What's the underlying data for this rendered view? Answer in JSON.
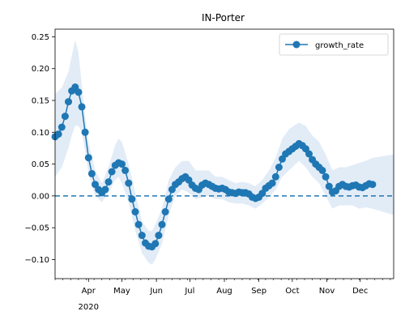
{
  "chart_data": {
    "type": "line",
    "title": "IN-Porter",
    "xlabel": "",
    "ylabel": "",
    "x_ticks": [
      "Apr",
      "May",
      "Jun",
      "Jul",
      "Aug",
      "Sep",
      "Oct",
      "Nov",
      "Dec"
    ],
    "x_year_label": "2020",
    "x_range": [
      "2020-03-02",
      "2020-12-31"
    ],
    "ylim": [
      -0.13,
      0.262
    ],
    "y_ticks": [
      "0.25",
      "0.20",
      "0.15",
      "0.10",
      "0.05",
      "0.00",
      "−0.05",
      "−0.10"
    ],
    "y_tick_values": [
      0.25,
      0.2,
      0.15,
      0.1,
      0.05,
      0.0,
      -0.05,
      -0.1
    ],
    "reference_line": 0.0,
    "legend": {
      "position": "top-right",
      "label": "growth_rate"
    },
    "colors": {
      "series": "#1f77b4",
      "band": "#cfe0f1",
      "zero_line": "#1f77b4"
    },
    "series": [
      {
        "name": "growth_rate",
        "points": [
          [
            "2020-03-02",
            0.093
          ],
          [
            "2020-03-05",
            0.097
          ],
          [
            "2020-03-08",
            0.108
          ],
          [
            "2020-03-11",
            0.125
          ],
          [
            "2020-03-14",
            0.148
          ],
          [
            "2020-03-17",
            0.165
          ],
          [
            "2020-03-20",
            0.171
          ],
          [
            "2020-03-23",
            0.163
          ],
          [
            "2020-03-26",
            0.14
          ],
          [
            "2020-03-29",
            0.1
          ],
          [
            "2020-04-01",
            0.06
          ],
          [
            "2020-04-04",
            0.035
          ],
          [
            "2020-04-07",
            0.018
          ],
          [
            "2020-04-10",
            0.01
          ],
          [
            "2020-04-13",
            0.005
          ],
          [
            "2020-04-16",
            0.01
          ],
          [
            "2020-04-19",
            0.022
          ],
          [
            "2020-04-22",
            0.038
          ],
          [
            "2020-04-25",
            0.048
          ],
          [
            "2020-04-28",
            0.052
          ],
          [
            "2020-05-01",
            0.05
          ],
          [
            "2020-05-04",
            0.04
          ],
          [
            "2020-05-07",
            0.02
          ],
          [
            "2020-05-10",
            -0.005
          ],
          [
            "2020-05-13",
            -0.025
          ],
          [
            "2020-05-16",
            -0.045
          ],
          [
            "2020-05-19",
            -0.062
          ],
          [
            "2020-05-22",
            -0.074
          ],
          [
            "2020-05-25",
            -0.079
          ],
          [
            "2020-05-28",
            -0.08
          ],
          [
            "2020-05-31",
            -0.075
          ],
          [
            "2020-06-03",
            -0.062
          ],
          [
            "2020-06-06",
            -0.045
          ],
          [
            "2020-06-09",
            -0.025
          ],
          [
            "2020-06-12",
            -0.005
          ],
          [
            "2020-06-15",
            0.01
          ],
          [
            "2020-06-18",
            0.018
          ],
          [
            "2020-06-21",
            0.022
          ],
          [
            "2020-06-24",
            0.027
          ],
          [
            "2020-06-27",
            0.03
          ],
          [
            "2020-06-30",
            0.025
          ],
          [
            "2020-07-03",
            0.017
          ],
          [
            "2020-07-06",
            0.012
          ],
          [
            "2020-07-09",
            0.01
          ],
          [
            "2020-07-12",
            0.017
          ],
          [
            "2020-07-15",
            0.02
          ],
          [
            "2020-07-18",
            0.018
          ],
          [
            "2020-07-21",
            0.015
          ],
          [
            "2020-07-24",
            0.012
          ],
          [
            "2020-07-27",
            0.011
          ],
          [
            "2020-07-30",
            0.012
          ],
          [
            "2020-08-02",
            0.01
          ],
          [
            "2020-08-05",
            0.006
          ],
          [
            "2020-08-08",
            0.005
          ],
          [
            "2020-08-11",
            0.004
          ],
          [
            "2020-08-14",
            0.006
          ],
          [
            "2020-08-17",
            0.005
          ],
          [
            "2020-08-20",
            0.005
          ],
          [
            "2020-08-23",
            0.003
          ],
          [
            "2020-08-26",
            -0.002
          ],
          [
            "2020-08-29",
            -0.004
          ],
          [
            "2020-09-01",
            -0.002
          ],
          [
            "2020-09-04",
            0.004
          ],
          [
            "2020-09-07",
            0.012
          ],
          [
            "2020-09-10",
            0.016
          ],
          [
            "2020-09-13",
            0.02
          ],
          [
            "2020-09-16",
            0.03
          ],
          [
            "2020-09-19",
            0.045
          ],
          [
            "2020-09-22",
            0.058
          ],
          [
            "2020-09-25",
            0.066
          ],
          [
            "2020-09-28",
            0.07
          ],
          [
            "2020-10-01",
            0.074
          ],
          [
            "2020-10-04",
            0.078
          ],
          [
            "2020-10-07",
            0.082
          ],
          [
            "2020-10-10",
            0.079
          ],
          [
            "2020-10-13",
            0.074
          ],
          [
            "2020-10-16",
            0.066
          ],
          [
            "2020-10-19",
            0.057
          ],
          [
            "2020-10-22",
            0.05
          ],
          [
            "2020-10-25",
            0.045
          ],
          [
            "2020-10-28",
            0.04
          ],
          [
            "2020-10-31",
            0.03
          ],
          [
            "2020-11-03",
            0.015
          ],
          [
            "2020-11-06",
            0.006
          ],
          [
            "2020-11-09",
            0.008
          ],
          [
            "2020-11-12",
            0.015
          ],
          [
            "2020-11-15",
            0.018
          ],
          [
            "2020-11-18",
            0.015
          ],
          [
            "2020-11-21",
            0.014
          ],
          [
            "2020-11-24",
            0.016
          ],
          [
            "2020-11-27",
            0.017
          ],
          [
            "2020-11-30",
            0.014
          ],
          [
            "2020-12-03",
            0.013
          ],
          [
            "2020-12-06",
            0.016
          ],
          [
            "2020-12-09",
            0.019
          ],
          [
            "2020-12-12",
            0.018
          ]
        ],
        "band_points": [
          [
            "2020-03-02",
            0.03,
            0.16
          ],
          [
            "2020-03-08",
            0.045,
            0.17
          ],
          [
            "2020-03-14",
            0.075,
            0.195
          ],
          [
            "2020-03-17",
            0.095,
            0.22
          ],
          [
            "2020-03-20",
            0.11,
            0.245
          ],
          [
            "2020-03-23",
            0.11,
            0.225
          ],
          [
            "2020-03-26",
            0.1,
            0.175
          ],
          [
            "2020-03-29",
            0.07,
            0.125
          ],
          [
            "2020-04-01",
            0.035,
            0.085
          ],
          [
            "2020-04-07",
            0.0,
            0.04
          ],
          [
            "2020-04-13",
            -0.01,
            0.02
          ],
          [
            "2020-04-19",
            0.005,
            0.045
          ],
          [
            "2020-04-25",
            0.025,
            0.08
          ],
          [
            "2020-04-28",
            0.03,
            0.09
          ],
          [
            "2020-05-01",
            0.02,
            0.085
          ],
          [
            "2020-05-07",
            -0.01,
            0.05
          ],
          [
            "2020-05-13",
            -0.055,
            0.005
          ],
          [
            "2020-05-19",
            -0.09,
            -0.04
          ],
          [
            "2020-05-25",
            -0.105,
            -0.055
          ],
          [
            "2020-05-28",
            -0.108,
            -0.055
          ],
          [
            "2020-05-31",
            -0.1,
            -0.045
          ],
          [
            "2020-06-06",
            -0.075,
            -0.02
          ],
          [
            "2020-06-12",
            -0.03,
            0.025
          ],
          [
            "2020-06-18",
            0.0,
            0.045
          ],
          [
            "2020-06-24",
            0.01,
            0.055
          ],
          [
            "2020-06-30",
            0.005,
            0.055
          ],
          [
            "2020-07-06",
            -0.005,
            0.04
          ],
          [
            "2020-07-12",
            -0.002,
            0.04
          ],
          [
            "2020-07-18",
            0.0,
            0.04
          ],
          [
            "2020-07-24",
            -0.005,
            0.03
          ],
          [
            "2020-07-30",
            -0.005,
            0.03
          ],
          [
            "2020-08-05",
            -0.01,
            0.025
          ],
          [
            "2020-08-11",
            -0.012,
            0.02
          ],
          [
            "2020-08-17",
            -0.012,
            0.022
          ],
          [
            "2020-08-23",
            -0.015,
            0.02
          ],
          [
            "2020-08-29",
            -0.02,
            0.015
          ],
          [
            "2020-09-04",
            -0.012,
            0.025
          ],
          [
            "2020-09-10",
            -0.002,
            0.04
          ],
          [
            "2020-09-16",
            0.01,
            0.06
          ],
          [
            "2020-09-22",
            0.03,
            0.09
          ],
          [
            "2020-09-28",
            0.04,
            0.105
          ],
          [
            "2020-10-04",
            0.05,
            0.112
          ],
          [
            "2020-10-07",
            0.055,
            0.115
          ],
          [
            "2020-10-13",
            0.045,
            0.11
          ],
          [
            "2020-10-19",
            0.03,
            0.095
          ],
          [
            "2020-10-25",
            0.02,
            0.085
          ],
          [
            "2020-10-31",
            0.0,
            0.065
          ],
          [
            "2020-11-06",
            -0.02,
            0.04
          ],
          [
            "2020-11-12",
            -0.015,
            0.045
          ],
          [
            "2020-11-18",
            -0.015,
            0.045
          ],
          [
            "2020-11-24",
            -0.015,
            0.048
          ],
          [
            "2020-11-30",
            -0.02,
            0.052
          ],
          [
            "2020-12-06",
            -0.018,
            0.055
          ],
          [
            "2020-12-12",
            -0.02,
            0.06
          ],
          [
            "2020-12-31",
            -0.03,
            0.065
          ]
        ]
      }
    ]
  }
}
